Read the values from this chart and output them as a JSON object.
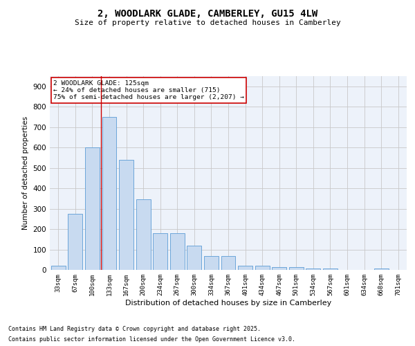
{
  "title_line1": "2, WOODLARK GLADE, CAMBERLEY, GU15 4LW",
  "title_line2": "Size of property relative to detached houses in Camberley",
  "xlabel": "Distribution of detached houses by size in Camberley",
  "ylabel": "Number of detached properties",
  "categories": [
    "33sqm",
    "67sqm",
    "100sqm",
    "133sqm",
    "167sqm",
    "200sqm",
    "234sqm",
    "267sqm",
    "300sqm",
    "334sqm",
    "367sqm",
    "401sqm",
    "434sqm",
    "467sqm",
    "501sqm",
    "534sqm",
    "567sqm",
    "601sqm",
    "634sqm",
    "668sqm",
    "701sqm"
  ],
  "values": [
    20,
    275,
    600,
    750,
    540,
    345,
    180,
    180,
    120,
    68,
    68,
    22,
    22,
    12,
    12,
    8,
    8,
    0,
    0,
    8,
    0
  ],
  "bar_color": "#c8daf0",
  "bar_edge_color": "#5b9bd5",
  "grid_color": "#c8c8c8",
  "bg_color": "#edf2fa",
  "annotation_text": "2 WOODLARK GLADE: 125sqm\n← 24% of detached houses are smaller (715)\n75% of semi-detached houses are larger (2,207) →",
  "annotation_box_color": "#ffffff",
  "annotation_box_edge": "#cc0000",
  "red_line_x": 2.5,
  "ylim": [
    0,
    950
  ],
  "yticks": [
    0,
    100,
    200,
    300,
    400,
    500,
    600,
    700,
    800,
    900
  ],
  "footnote1": "Contains HM Land Registry data © Crown copyright and database right 2025.",
  "footnote2": "Contains public sector information licensed under the Open Government Licence v3.0."
}
